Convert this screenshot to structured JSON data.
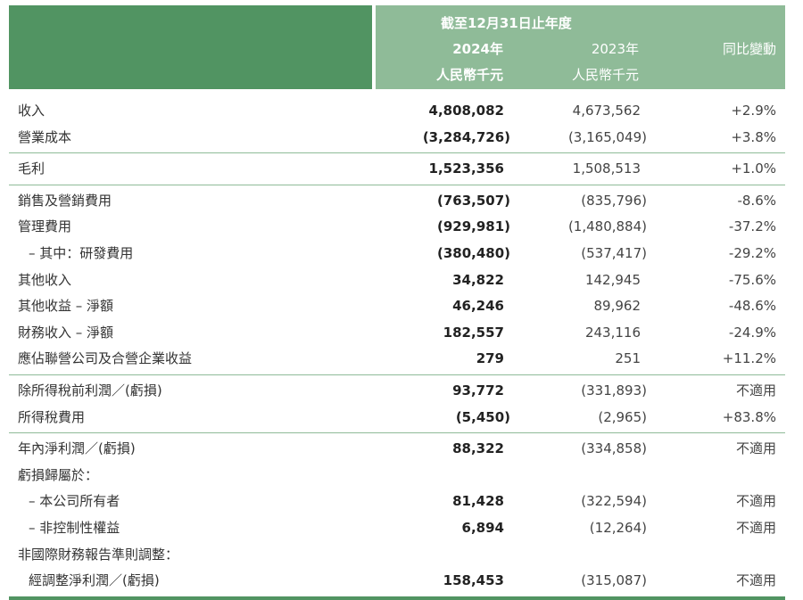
{
  "header": {
    "period": "截至12月31日止年度",
    "col_2024": "2024年",
    "col_2023": "2023年",
    "col_change": "同比變動",
    "unit_2024": "人民幣千元",
    "unit_2023": "人民幣千元"
  },
  "colors": {
    "dark_green": "#519462",
    "light_green": "#8fbb98"
  },
  "rows": [
    {
      "label": "收入",
      "v2024": "4,808,082",
      "v2023": "4,673,562",
      "change": "+2.9%"
    },
    {
      "label": "營業成本",
      "v2024": "(3,284,726)",
      "v2023": "(3,165,049)",
      "change": "+3.8%",
      "sep_after": true
    },
    {
      "label": "毛利",
      "v2024": "1,523,356",
      "v2023": "1,508,513",
      "change": "+1.0%",
      "sep_after": true
    },
    {
      "label": "銷售及營銷費用",
      "v2024": "(763,507)",
      "v2023": "(835,796)",
      "change": "-8.6%"
    },
    {
      "label": "管理費用",
      "v2024": "(929,981)",
      "v2023": "(1,480,884)",
      "change": "-37.2%"
    },
    {
      "label": "– 其中：研發費用",
      "v2024": "(380,480)",
      "v2023": "(537,417)",
      "change": "-29.2%",
      "indent": true
    },
    {
      "label": "其他收入",
      "v2024": "34,822",
      "v2023": "142,945",
      "change": "-75.6%"
    },
    {
      "label": "其他收益 – 淨額",
      "v2024": "46,246",
      "v2023": "89,962",
      "change": "-48.6%"
    },
    {
      "label": "財務收入 – 淨額",
      "v2024": "182,557",
      "v2023": "243,116",
      "change": "-24.9%"
    },
    {
      "label": "應佔聯營公司及合營企業收益",
      "v2024": "279",
      "v2023": "251",
      "change": "+11.2%",
      "sep_after": true
    },
    {
      "label": "除所得稅前利潤／(虧損)",
      "v2024": "93,772",
      "v2023": "(331,893)",
      "change": "不適用"
    },
    {
      "label": "所得稅費用",
      "v2024": "(5,450)",
      "v2023": "(2,965)",
      "change": "+83.8%",
      "sep_after": true
    },
    {
      "label": "年內淨利潤／(虧損)",
      "v2024": "88,322",
      "v2023": "(334,858)",
      "change": "不適用"
    },
    {
      "label": "虧損歸屬於：",
      "v2024": "",
      "v2023": "",
      "change": ""
    },
    {
      "label": "– 本公司所有者",
      "v2024": "81,428",
      "v2023": "(322,594)",
      "change": "不適用",
      "indent": true
    },
    {
      "label": "– 非控制性權益",
      "v2024": "6,894",
      "v2023": "(12,264)",
      "change": "不適用",
      "indent": true
    },
    {
      "label": "非國際財務報告準則調整：",
      "v2024": "",
      "v2023": "",
      "change": ""
    },
    {
      "label": "經調整淨利潤／(虧損)",
      "v2024": "158,453",
      "v2023": "(315,087)",
      "change": "不適用",
      "indent": true
    }
  ]
}
